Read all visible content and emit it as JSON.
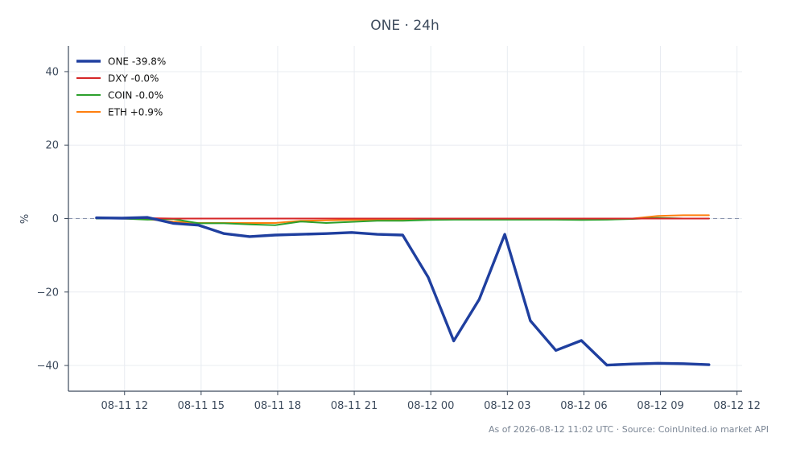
{
  "chart_data": {
    "type": "line",
    "title": "ONE · 24h",
    "xlabel": "",
    "ylabel": "%",
    "x_tick_labels": [
      "08-11 12",
      "08-11 15",
      "08-11 18",
      "08-11 21",
      "08-12 00",
      "08-12 03",
      "08-12 06",
      "08-12 09",
      "08-12 12"
    ],
    "y_ticks": [
      40,
      20,
      0,
      -20,
      -40
    ],
    "y_tick_labels": [
      "40",
      "20",
      "0",
      "−20",
      "−40"
    ],
    "xlim_hours": [
      9.8,
      36.2
    ],
    "ylim": [
      -47,
      47
    ],
    "x_hours": [
      10.9,
      11.9,
      12.9,
      13.9,
      14.9,
      15.9,
      16.9,
      17.9,
      18.9,
      19.9,
      20.9,
      21.9,
      22.9,
      23.9,
      24.9,
      25.9,
      26.9,
      27.9,
      28.9,
      29.9,
      30.9,
      31.9,
      32.9,
      33.9,
      34.9
    ],
    "grid": true,
    "zero_line": true,
    "legend_position": "top-left",
    "series": [
      {
        "name": "ONE -39.8%",
        "color": "#1f3f9f",
        "values": [
          0.2,
          0.1,
          0.3,
          -1.3,
          -1.8,
          -4.1,
          -4.9,
          -4.5,
          -4.3,
          -4.1,
          -3.8,
          -4.3,
          -4.5,
          -16.0,
          -33.3,
          -22.0,
          -4.3,
          -27.8,
          -35.9,
          -33.2,
          -39.9,
          -39.6,
          -39.4,
          -39.5,
          -39.8
        ]
      },
      {
        "name": "DXY -0.0%",
        "color": "#d62728",
        "values": [
          0.2,
          0.1,
          0.1,
          0.0,
          0.0,
          0.0,
          0.0,
          0.0,
          0.0,
          0.0,
          0.0,
          0.0,
          0.0,
          0.0,
          0.0,
          0.0,
          0.0,
          0.0,
          0.0,
          0.0,
          0.0,
          0.0,
          0.0,
          0.0,
          0.0
        ]
      },
      {
        "name": "COIN -0.0%",
        "color": "#2ca02c",
        "values": [
          0.0,
          0.0,
          -0.3,
          -0.1,
          -1.3,
          -1.3,
          -1.6,
          -1.8,
          -0.8,
          -1.2,
          -0.9,
          -0.6,
          -0.6,
          -0.4,
          -0.3,
          -0.3,
          -0.3,
          -0.3,
          -0.3,
          -0.4,
          -0.3,
          -0.1,
          0.2,
          0.0,
          0.0
        ]
      },
      {
        "name": "ETH +0.9%",
        "color": "#ff7f0e",
        "values": [
          0.0,
          0.0,
          -0.2,
          -0.8,
          -1.2,
          -1.2,
          -1.2,
          -1.2,
          -0.6,
          -0.5,
          -0.4,
          -0.3,
          -0.3,
          -0.3,
          -0.2,
          -0.2,
          -0.2,
          -0.2,
          -0.2,
          -0.2,
          -0.1,
          0.0,
          0.7,
          0.9,
          0.9
        ]
      }
    ],
    "footnote": "As of 2026-08-12 11:02 UTC · Source: CoinUnited.io market API"
  }
}
